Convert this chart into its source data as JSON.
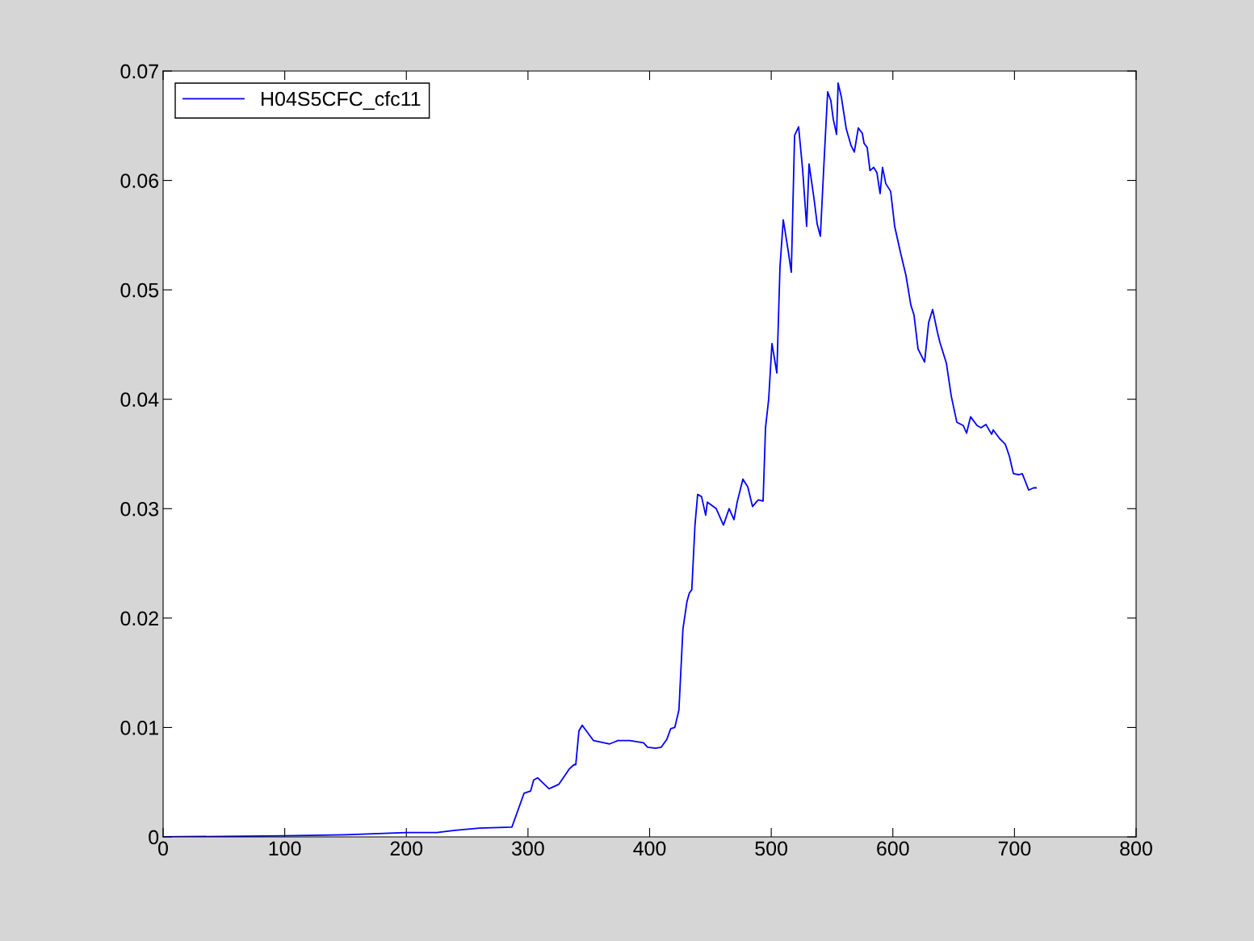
{
  "chart_data": {
    "type": "line",
    "xlim": [
      0,
      800
    ],
    "ylim": [
      0,
      0.07
    ],
    "xticks": [
      0,
      100,
      200,
      300,
      400,
      500,
      600,
      700,
      800
    ],
    "yticks": [
      0,
      0.01,
      0.02,
      0.03,
      0.04,
      0.05,
      0.06,
      0.07
    ],
    "grid": false,
    "legend": "top left",
    "marker": "none",
    "line_style": "solid",
    "series": [
      {
        "name": "H04S5CFC_cfc11",
        "color": "#0000ff",
        "x": [
          0,
          50,
          100,
          150,
          200,
          225,
          240,
          260,
          286.8,
          296.8,
          302.2,
          304.7,
          308.0,
          317.3,
          325.3,
          333.9,
          337.9,
          339.3,
          341.9,
          344.6,
          353.9,
          367.1,
          373.8,
          383.7,
          395.0,
          398.3,
          405.0,
          409.6,
          414.1,
          417.4,
          420.7,
          424.1,
          427.4,
          430.7,
          432.7,
          434.7,
          437.3,
          439.5,
          442.7,
          446.1,
          447.5,
          454.8,
          460.7,
          465.4,
          469.4,
          472.0,
          476.7,
          480.7,
          484.6,
          489.3,
          493.3,
          495.3,
          497.9,
          500.6,
          504.6,
          507.2,
          509.9,
          513.9,
          516.5,
          519.2,
          522.5,
          525.8,
          529.1,
          531.1,
          535.1,
          537.8,
          540.4,
          543.1,
          546.4,
          549.0,
          551.0,
          553.7,
          555.0,
          557.7,
          561.7,
          565.6,
          568.3,
          571.6,
          574.9,
          576.3,
          578.9,
          581.2,
          584.2,
          586.9,
          589.5,
          591.5,
          594.2,
          598.2,
          601.5,
          606.1,
          610.8,
          614.8,
          617.4,
          620.7,
          626.1,
          629.4,
          632.7,
          636.7,
          638.7,
          644.0,
          648.0,
          652.6,
          657.9,
          660.6,
          663.9,
          669.2,
          672.5,
          676.5,
          681.2,
          682.5,
          687.8,
          692.4,
          695.8,
          699.1,
          703.7,
          706.4,
          711.7,
          715.7,
          717.7
        ],
        "values": [
          0,
          5e-05,
          0.0001,
          0.0002,
          0.0004,
          0.0004,
          0.0006,
          0.0008,
          0.0009,
          0.004,
          0.0042,
          0.0052,
          0.0054,
          0.0044,
          0.0048,
          0.0062,
          0.0066,
          0.0066,
          0.0097,
          0.0102,
          0.0088,
          0.0085,
          0.0088,
          0.0088,
          0.0086,
          0.0082,
          0.0081,
          0.0082,
          0.0089,
          0.0099,
          0.01,
          0.0116,
          0.019,
          0.0215,
          0.0223,
          0.0226,
          0.0285,
          0.0313,
          0.0311,
          0.0294,
          0.0306,
          0.03,
          0.0285,
          0.03,
          0.029,
          0.0306,
          0.0327,
          0.032,
          0.0302,
          0.0308,
          0.0307,
          0.0374,
          0.04,
          0.0451,
          0.0424,
          0.0521,
          0.0564,
          0.0536,
          0.0516,
          0.0641,
          0.0649,
          0.061,
          0.0558,
          0.0615,
          0.0584,
          0.056,
          0.0549,
          0.061,
          0.0681,
          0.0673,
          0.0656,
          0.0642,
          0.0689,
          0.0676,
          0.0647,
          0.0632,
          0.0626,
          0.0648,
          0.0643,
          0.0634,
          0.063,
          0.0609,
          0.0612,
          0.0607,
          0.0588,
          0.0612,
          0.0597,
          0.059,
          0.0558,
          0.0535,
          0.0513,
          0.0486,
          0.0477,
          0.0446,
          0.0434,
          0.047,
          0.0482,
          0.0461,
          0.0452,
          0.0433,
          0.0403,
          0.0379,
          0.0376,
          0.0369,
          0.0384,
          0.0376,
          0.0374,
          0.0377,
          0.0368,
          0.0372,
          0.0364,
          0.0359,
          0.0348,
          0.0332,
          0.0331,
          0.0332,
          0.0317,
          0.0319,
          0.0319
        ]
      }
    ]
  }
}
